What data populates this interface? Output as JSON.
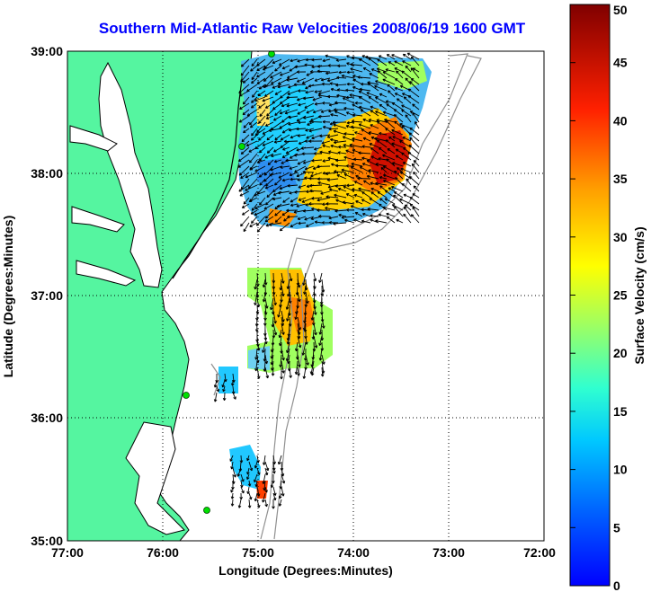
{
  "title": "Southern Mid-Atlantic Raw Velocities 2008/06/19 1600 GMT",
  "axes": {
    "xlabel": "Longitude (Degrees:Minutes)",
    "ylabel": "Latitude (Degrees:Minutes)",
    "xticks": [
      "77:00",
      "76:00",
      "75:00",
      "74:00",
      "73:00",
      "72:00"
    ],
    "yticks": [
      "39:00",
      "38:00",
      "37:00",
      "36:00",
      "35:00"
    ]
  },
  "colorbar": {
    "label": "Surface Velocity (cm/s)",
    "ticks": [
      "50",
      "45",
      "40",
      "35",
      "30",
      "25",
      "20",
      "15",
      "10",
      "5",
      "0"
    ]
  },
  "colors": {
    "land": "#55f5a0",
    "title": "#0000ff",
    "grid": "#000000"
  }
}
